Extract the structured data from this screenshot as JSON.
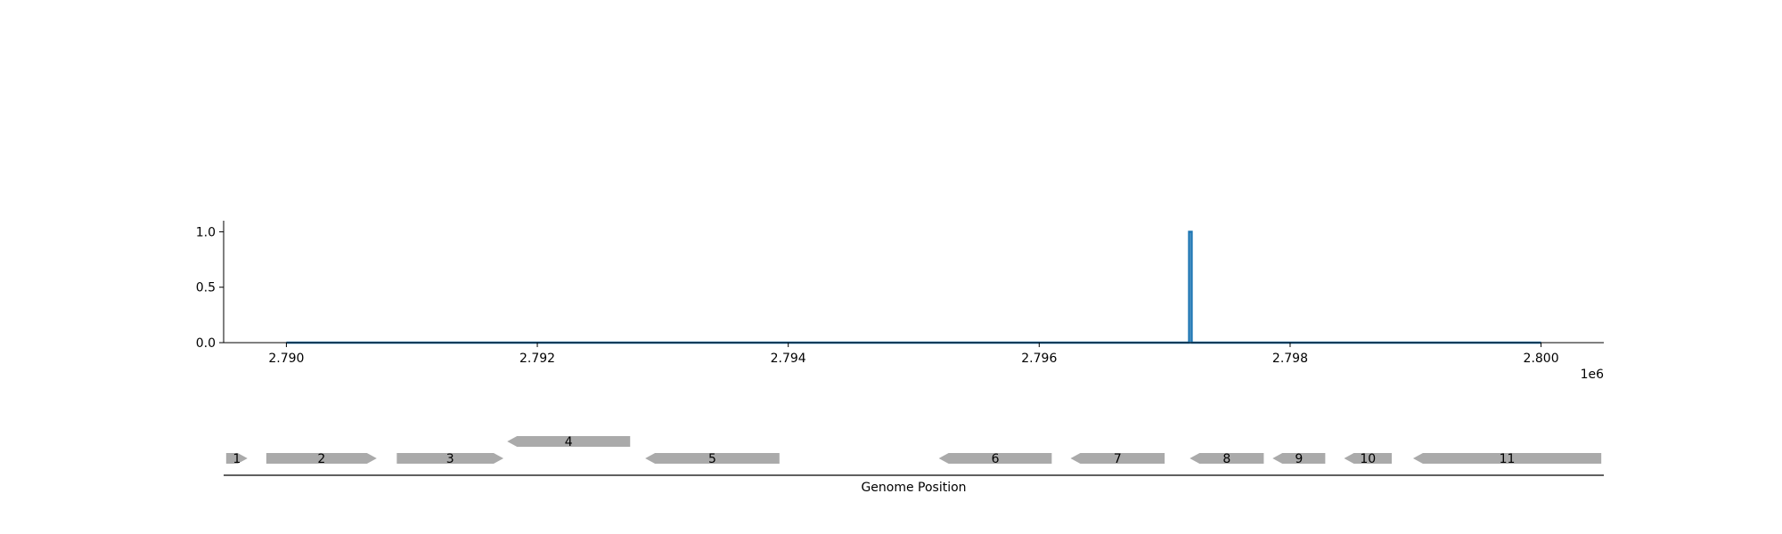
{
  "chart_data": [
    {
      "type": "line",
      "title": "",
      "xlabel": "",
      "ylabel": "",
      "x_offset_label": "1e6",
      "xlim": [
        2789500,
        2800500
      ],
      "ylim": [
        0,
        1.1
      ],
      "x_ticks": [
        2790000,
        2792000,
        2794000,
        2796000,
        2798000,
        2800000
      ],
      "x_tick_labels": [
        "2.790",
        "2.792",
        "2.794",
        "2.796",
        "2.798",
        "2.800"
      ],
      "y_ticks": [
        0,
        0.5,
        1.0
      ],
      "y_tick_labels": [
        "0.0",
        "0.5",
        "1.0"
      ],
      "grid": false,
      "series": [
        {
          "color": "#1f77b4",
          "x": [
            2790000,
            2797195,
            2797195,
            2797215,
            2797215,
            2800000
          ],
          "y": [
            0,
            0,
            1.0,
            1.0,
            0,
            0
          ]
        }
      ]
    },
    {
      "type": "gene-track",
      "xlabel": "Genome Position",
      "xlim": [
        2789500,
        2800500
      ],
      "feature_color": "#aaaaaa",
      "genes": [
        {
          "label": "1",
          "start": 2789520,
          "end": 2789690,
          "strand": 1,
          "row": 0
        },
        {
          "label": "2",
          "start": 2789840,
          "end": 2790720,
          "strand": 1,
          "row": 0
        },
        {
          "label": "3",
          "start": 2790880,
          "end": 2791730,
          "strand": 1,
          "row": 0
        },
        {
          "label": "4",
          "start": 2791760,
          "end": 2792740,
          "strand": -1,
          "row": 1
        },
        {
          "label": "5",
          "start": 2792860,
          "end": 2793930,
          "strand": -1,
          "row": 0
        },
        {
          "label": "6",
          "start": 2795200,
          "end": 2796100,
          "strand": -1,
          "row": 0
        },
        {
          "label": "7",
          "start": 2796250,
          "end": 2797000,
          "strand": -1,
          "row": 0
        },
        {
          "label": "8",
          "start": 2797200,
          "end": 2797790,
          "strand": -1,
          "row": 0
        },
        {
          "label": "9",
          "start": 2797860,
          "end": 2798280,
          "strand": -1,
          "row": 0
        },
        {
          "label": "10",
          "start": 2798430,
          "end": 2798810,
          "strand": -1,
          "row": 0
        },
        {
          "label": "11",
          "start": 2798980,
          "end": 2800480,
          "strand": -1,
          "row": 0
        }
      ]
    }
  ]
}
